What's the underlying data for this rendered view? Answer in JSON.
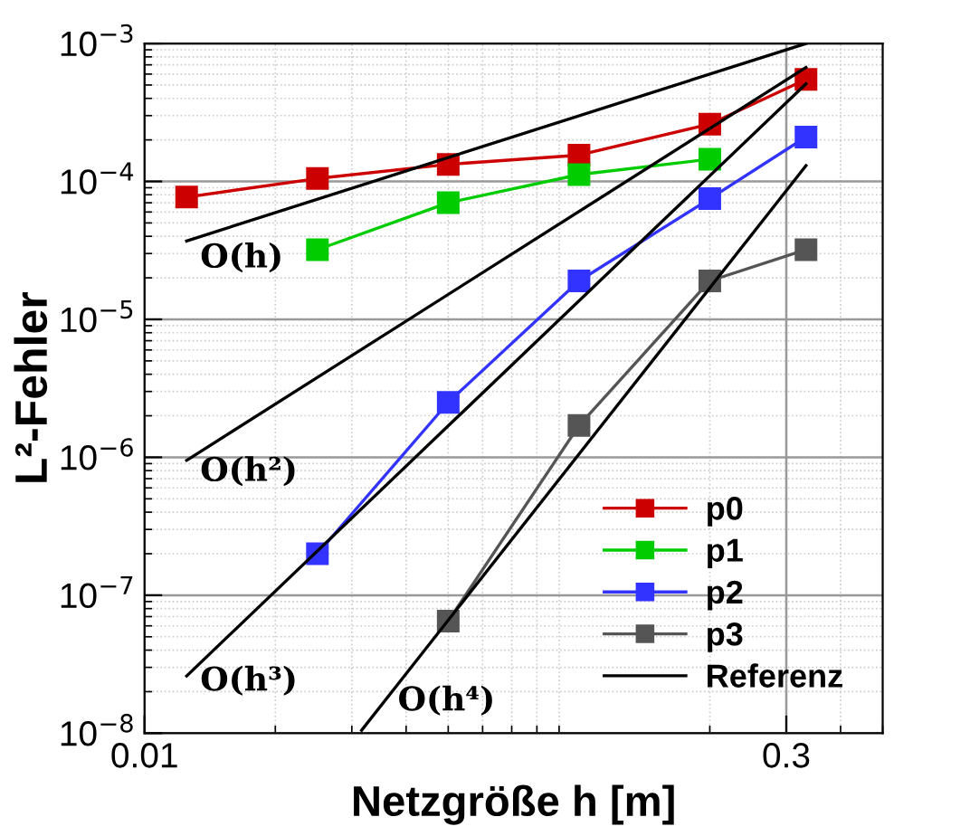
{
  "chart_data": {
    "type": "line",
    "xlabel": "Netzgröße h [m]",
    "ylabel": "L²-Fehler",
    "log": "xy",
    "grid": true,
    "legend": "bottom right",
    "marker": "square",
    "line_style": "solid",
    "xlim": [
      0.01,
      0.5
    ],
    "xticks": [
      0.01,
      0.3
    ],
    "ylim": [
      1e-08,
      0.001
    ],
    "yticks": [
      {
        "value": 1e-08,
        "label": "10$^{−8}$"
      },
      {
        "value": 1e-07,
        "label": "10$^{−7}$"
      },
      {
        "value": 1e-06,
        "label": "10$^{−6}$"
      },
      {
        "value": 1e-05,
        "label": "10$^{−5}$"
      },
      {
        "value": 0.0001,
        "label": "10$^{−4}$"
      },
      {
        "value": 0.001,
        "label": "10$^{−3}$"
      }
    ],
    "series": [
      {
        "name": "p0",
        "color": "#cc0000",
        "x": [
          0.0125,
          0.025,
          0.05,
          0.1,
          0.2,
          0.333
        ],
        "values": [
          7.7e-05,
          0.000105,
          0.000133,
          0.000155,
          0.00026,
          0.00055
        ]
      },
      {
        "name": "p1",
        "color": "#00cc00",
        "x": [
          0.025,
          0.05,
          0.1,
          0.2
        ],
        "values": [
          3.2e-05,
          7e-05,
          0.000112,
          0.000145
        ]
      },
      {
        "name": "p2",
        "color": "#3333ff",
        "x": [
          0.025,
          0.05,
          0.1,
          0.2,
          0.333
        ],
        "values": [
          2e-07,
          2.5e-06,
          1.9e-05,
          7.5e-05,
          0.00021
        ]
      },
      {
        "name": "p3",
        "color": "#555555",
        "x": [
          0.05,
          0.1,
          0.2,
          0.333
        ],
        "values": [
          6.5e-08,
          1.7e-06,
          1.9e-05,
          3.2e-05
        ]
      },
      {
        "name": "Referenz",
        "color": "#000000",
        "marker": "none",
        "x": [
          0.0125,
          0.333
        ],
        "values": [
          3.7e-05,
          0.001
        ]
      },
      {
        "color": "#000000",
        "marker": "none",
        "x": [
          0.0125,
          0.333
        ],
        "values": [
          9.5e-07,
          0.00067
        ]
      },
      {
        "color": "#000000",
        "marker": "none",
        "x": [
          0.0125,
          0.333
        ],
        "values": [
          2.6e-08,
          0.00051
        ]
      },
      {
        "color": "#000000",
        "marker": "none",
        "x": [
          0.0316,
          0.333
        ],
        "values": [
          1.05e-08,
          0.00013
        ]
      }
    ],
    "annotations": [
      "O(h)",
      "O(h²)",
      "O(h³)",
      "O(h⁴)"
    ]
  }
}
